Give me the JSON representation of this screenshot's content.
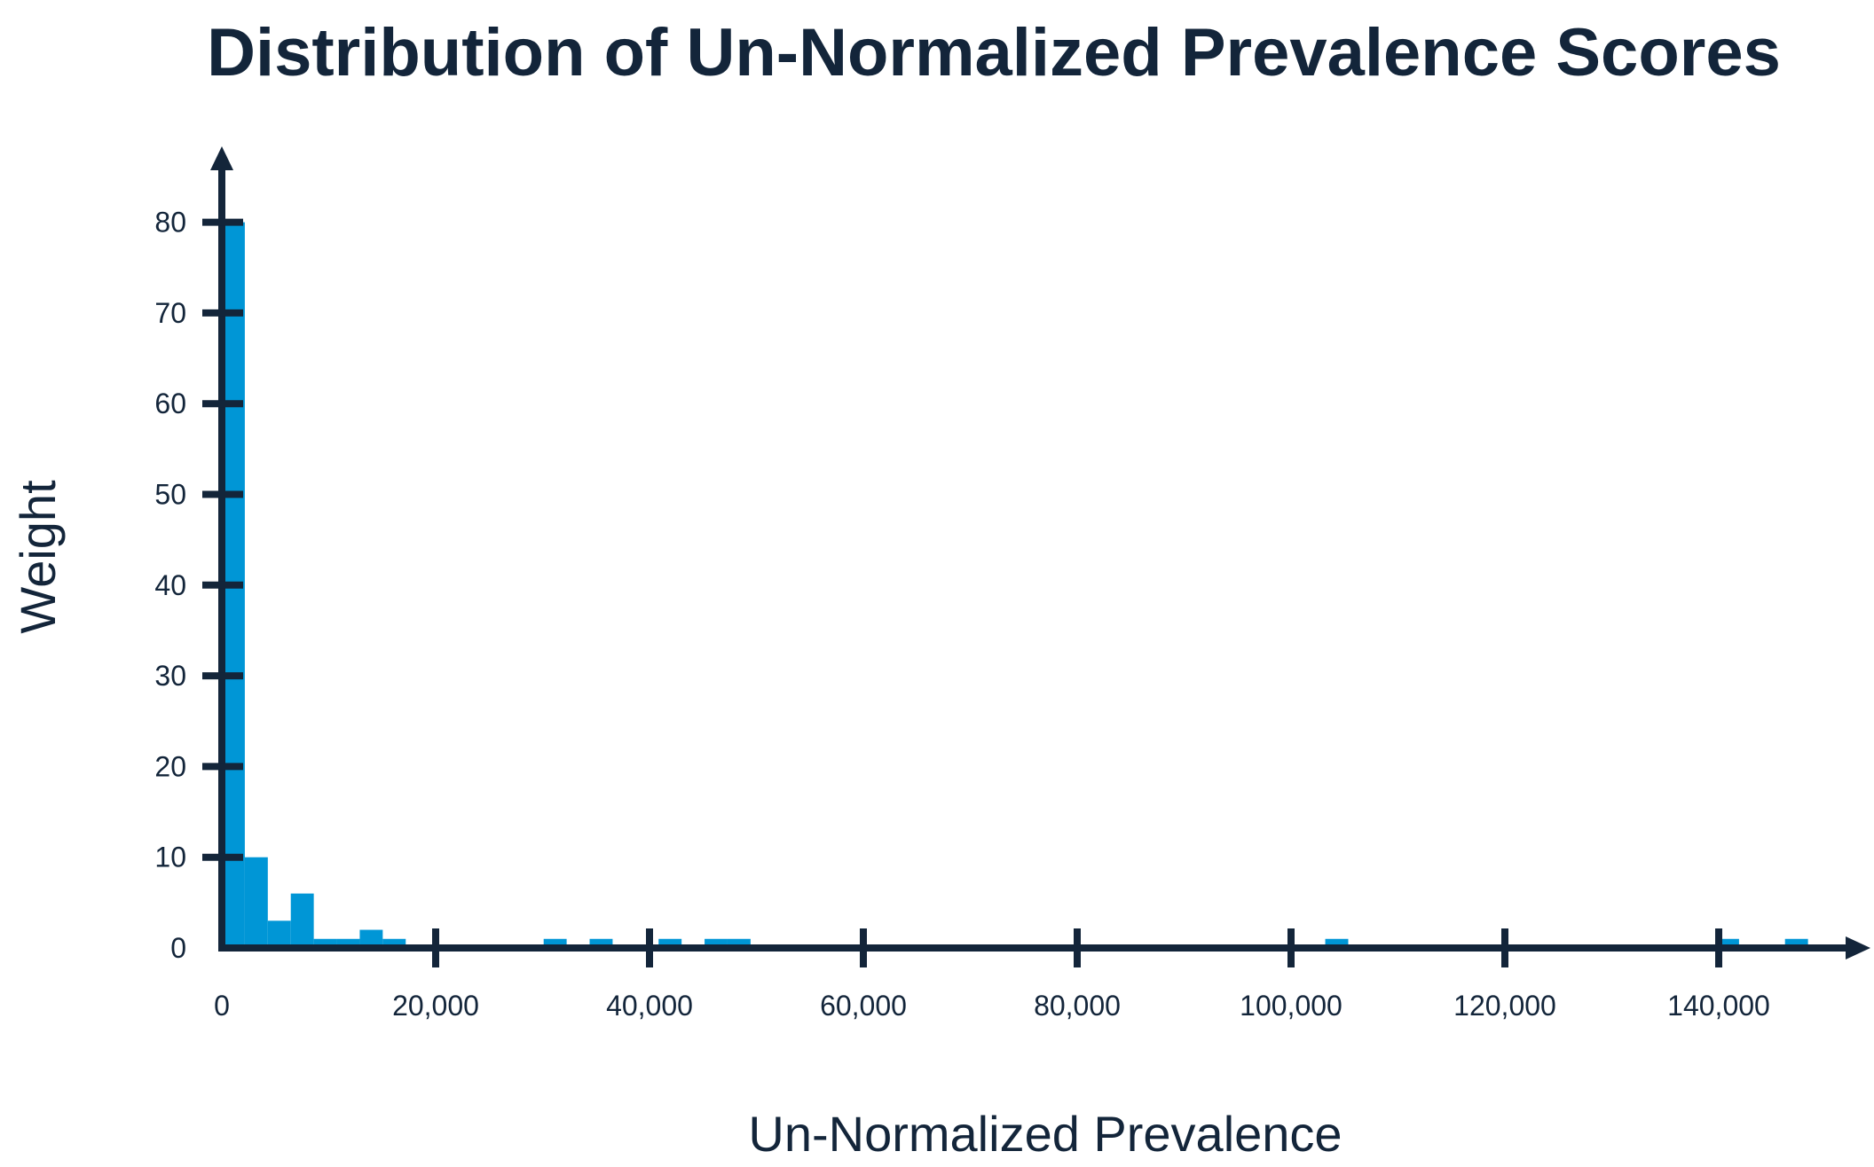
{
  "title": "Distribution of Un-Normalized Prevalence Scores",
  "colors": {
    "bar": "#0096d6",
    "axis": "#13253a",
    "text": "#13253a",
    "background": "#ffffff"
  },
  "chart_data": {
    "type": "bar",
    "title": "Distribution of Un-Normalized Prevalence Scores",
    "xlabel": "Un-Normalized Prevalence",
    "ylabel": "Weight",
    "xlim": [
      0,
      150000
    ],
    "ylim": [
      0,
      80
    ],
    "x_ticks": [
      0,
      20000,
      40000,
      60000,
      80000,
      100000,
      120000,
      140000
    ],
    "x_tick_labels": [
      "0",
      "20,000",
      "40,000",
      "60,000",
      "80,000",
      "100,000",
      "120,000",
      "140,000"
    ],
    "y_ticks": [
      0,
      10,
      20,
      30,
      40,
      50,
      60,
      70,
      80
    ],
    "y_tick_labels": [
      "0",
      "10",
      "20",
      "30",
      "40",
      "50",
      "60",
      "70",
      "80"
    ],
    "grid": false,
    "legend": "none",
    "bin_width": 2150,
    "bins": [
      {
        "x0": 0,
        "x1": 2150,
        "value": 80
      },
      {
        "x0": 2150,
        "x1": 4300,
        "value": 10
      },
      {
        "x0": 4300,
        "x1": 6450,
        "value": 3
      },
      {
        "x0": 6450,
        "x1": 8600,
        "value": 6
      },
      {
        "x0": 8600,
        "x1": 10750,
        "value": 1
      },
      {
        "x0": 10750,
        "x1": 12900,
        "value": 1
      },
      {
        "x0": 12900,
        "x1": 15050,
        "value": 2
      },
      {
        "x0": 15050,
        "x1": 17200,
        "value": 1
      },
      {
        "x0": 30100,
        "x1": 32250,
        "value": 1
      },
      {
        "x0": 34400,
        "x1": 36550,
        "value": 1
      },
      {
        "x0": 40850,
        "x1": 43000,
        "value": 1
      },
      {
        "x0": 45150,
        "x1": 47300,
        "value": 1
      },
      {
        "x0": 47300,
        "x1": 49450,
        "value": 1
      },
      {
        "x0": 103200,
        "x1": 105350,
        "value": 1
      },
      {
        "x0": 139750,
        "x1": 141900,
        "value": 1
      },
      {
        "x0": 146200,
        "x1": 148350,
        "value": 1
      }
    ]
  }
}
